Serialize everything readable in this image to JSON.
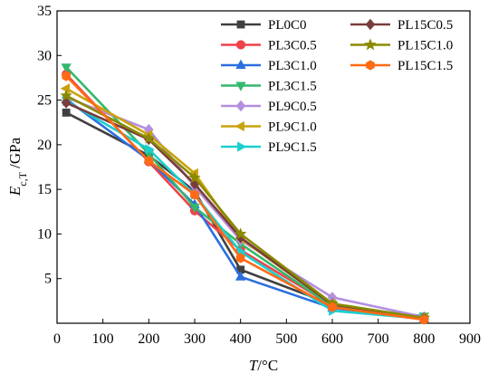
{
  "chart_data": {
    "type": "line",
    "xlabel": "T/°C",
    "ylabel": "Ec,T /GPa",
    "xlim": [
      0,
      900
    ],
    "ylim": [
      0,
      35
    ],
    "xticks": [
      0,
      100,
      200,
      300,
      400,
      500,
      600,
      700,
      800,
      900
    ],
    "yticks": [
      5,
      10,
      15,
      20,
      25,
      30,
      35
    ],
    "legend_position": "top-right",
    "grid": false,
    "x": [
      20,
      200,
      300,
      400,
      600,
      800
    ],
    "series": [
      {
        "name": "PL0C0",
        "color": "#404040",
        "marker": "square",
        "values": [
          23.6,
          18.8,
          14.8,
          6.0,
          2.1,
          0.6
        ]
      },
      {
        "name": "PL3C0.5",
        "color": "#f0424a",
        "marker": "circle",
        "values": [
          27.9,
          18.1,
          12.6,
          8.2,
          2.0,
          0.5
        ]
      },
      {
        "name": "PL3C1.0",
        "color": "#2b6fe0",
        "marker": "triangle-up",
        "values": [
          25.1,
          18.3,
          13.3,
          5.2,
          1.7,
          0.5
        ]
      },
      {
        "name": "PL3C1.5",
        "color": "#33b86d",
        "marker": "triangle-down",
        "values": [
          28.7,
          19.0,
          13.0,
          8.9,
          1.9,
          0.8
        ]
      },
      {
        "name": "PL9C0.5",
        "color": "#b48fdf",
        "marker": "diamond",
        "values": [
          25.3,
          21.7,
          15.3,
          9.3,
          2.9,
          0.7
        ]
      },
      {
        "name": "PL9C1.0",
        "color": "#c9a20e",
        "marker": "triangle-left",
        "values": [
          26.3,
          21.1,
          16.8,
          9.5,
          2.1,
          0.6
        ]
      },
      {
        "name": "PL9C1.5",
        "color": "#1ccfcf",
        "marker": "triangle-right",
        "values": [
          24.9,
          19.5,
          14.4,
          8.0,
          1.4,
          0.5
        ]
      },
      {
        "name": "PL15C0.5",
        "color": "#7a3c3c",
        "marker": "diamond",
        "values": [
          24.7,
          20.6,
          15.6,
          9.6,
          2.1,
          0.6
        ]
      },
      {
        "name": "PL15C1.0",
        "color": "#8a8a00",
        "marker": "star",
        "values": [
          25.5,
          20.7,
          16.3,
          10.0,
          2.2,
          0.6
        ]
      },
      {
        "name": "PL15C1.5",
        "color": "#ff6a16",
        "marker": "hexagon",
        "values": [
          27.7,
          18.2,
          14.4,
          7.3,
          1.8,
          0.4
        ]
      }
    ]
  }
}
